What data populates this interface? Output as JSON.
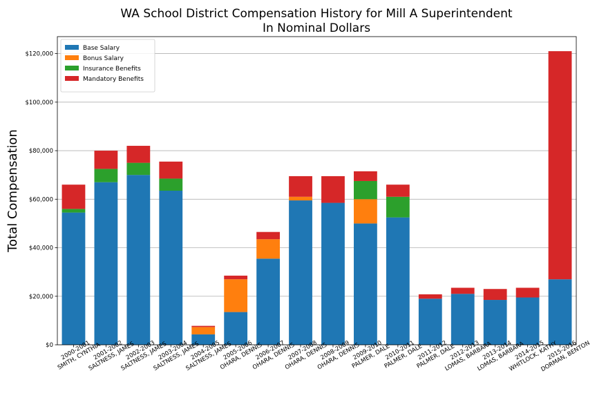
{
  "chart_data": {
    "type": "bar",
    "stacked": true,
    "title": "WA School District Compensation History for Mill A Superintendent",
    "subtitle": "In Nominal Dollars",
    "xlabel": "",
    "ylabel": "Total Compensation",
    "ylim": [
      0,
      127000
    ],
    "yticks": [
      0,
      20000,
      40000,
      60000,
      80000,
      100000,
      120000
    ],
    "ytick_labels": [
      "$0",
      "$20,000",
      "$40,000",
      "$60,000",
      "$80,000",
      "$100,000",
      "$120,000"
    ],
    "grid": "horizontal",
    "legend_position": "top-left",
    "categories": [
      [
        "2000-2001",
        "SMITH, CYNTHIA"
      ],
      [
        "2001-2002",
        "SALTNESS, JAMES"
      ],
      [
        "2002-2003",
        "SALTNESS, JAMES"
      ],
      [
        "2003-2004",
        "SALTNESS, JAMES"
      ],
      [
        "2004-2005",
        "SALTNESS, JAMES"
      ],
      [
        "2005-2006",
        "OHARA, DENNIS"
      ],
      [
        "2006-2007",
        "OHARA, DENNIS"
      ],
      [
        "2007-2008",
        "OHARA, DENNIS"
      ],
      [
        "2008-2009",
        "OHARA, DENNIS"
      ],
      [
        "2009-2010",
        "PALMER, DALE"
      ],
      [
        "2010-2011",
        "PALMER, DALE"
      ],
      [
        "2011-2012",
        "PALMER, DALE"
      ],
      [
        "2012-2013",
        "LOMAS, BARBARA"
      ],
      [
        "2013-2014",
        "LOMAS, BARBARA"
      ],
      [
        "2014-2015",
        "WHITLOCK, KATHY"
      ],
      [
        "2015-2016",
        "DORMAN, BENTON"
      ]
    ],
    "series": [
      {
        "name": "Base Salary",
        "color": "#1f77b4",
        "values": [
          54500,
          67000,
          70000,
          63500,
          4300,
          13500,
          35500,
          59500,
          58500,
          50000,
          52500,
          19000,
          21000,
          18500,
          19500,
          27000
        ]
      },
      {
        "name": "Bonus Salary",
        "color": "#ff7f0e",
        "values": [
          0,
          0,
          0,
          0,
          3000,
          13500,
          8000,
          1500,
          0,
          10000,
          0,
          0,
          0,
          0,
          0,
          0
        ]
      },
      {
        "name": "Insurance Benefits",
        "color": "#2ca02c",
        "values": [
          1500,
          5500,
          5000,
          5000,
          0,
          0,
          0,
          0,
          0,
          7500,
          8500,
          0,
          0,
          0,
          0,
          0
        ]
      },
      {
        "name": "Mandatory Benefits",
        "color": "#d62728",
        "values": [
          10000,
          7500,
          7000,
          7000,
          500,
          1500,
          3000,
          8500,
          11000,
          4000,
          5000,
          1800,
          2500,
          4500,
          4000,
          94000
        ]
      }
    ]
  }
}
